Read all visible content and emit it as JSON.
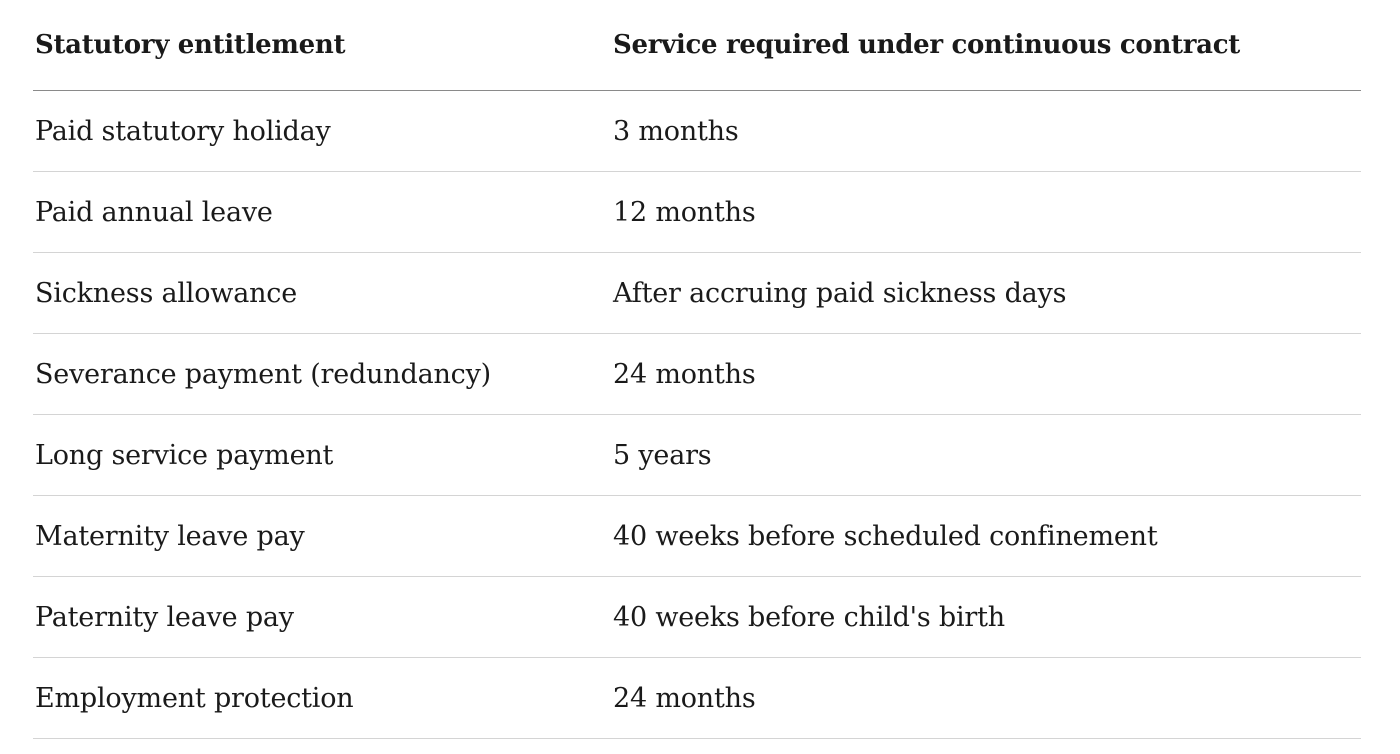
{
  "table": {
    "headers": [
      "Statutory entitlement",
      "Service required under continuous contract"
    ],
    "rows": [
      [
        "Paid statutory holiday",
        "3 months"
      ],
      [
        "Paid annual leave",
        "12 months"
      ],
      [
        "Sickness allowance",
        "After accruing paid sickness days"
      ],
      [
        "Severance payment (redundancy)",
        "24 months"
      ],
      [
        "Long service payment",
        "5 years"
      ],
      [
        "Maternity leave pay",
        "40 weeks before scheduled confinement"
      ],
      [
        "Paternity leave pay",
        "40 weeks before child's birth"
      ],
      [
        "Employment protection",
        "24 months"
      ]
    ]
  },
  "colors": {
    "text": "#1a1a1a",
    "header_rule": "#8a8a8a",
    "row_rule": "#d4d4d4",
    "background": "#ffffff"
  }
}
